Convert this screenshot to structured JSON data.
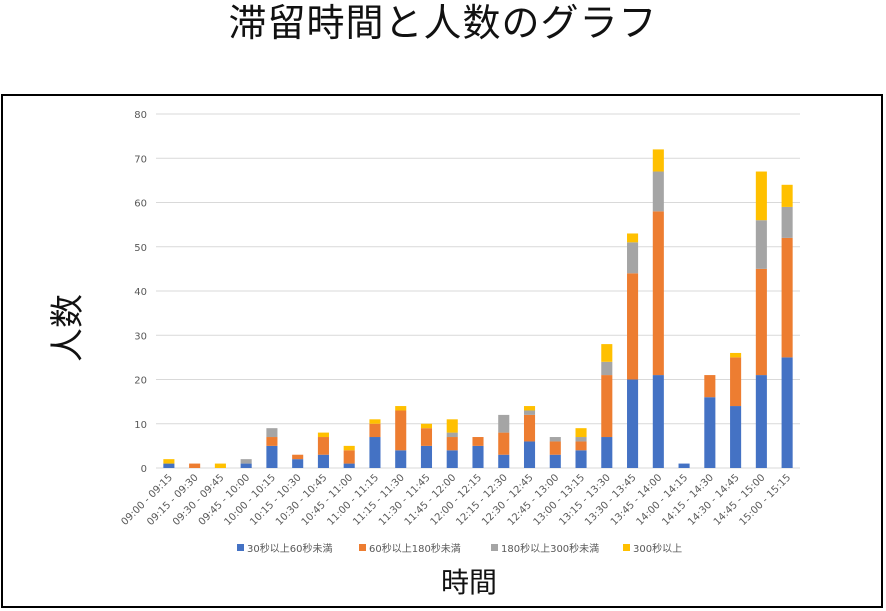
{
  "page": {
    "title": "滞留時間と人数のグラフ"
  },
  "colors": {
    "s1": "#4472C4",
    "s2": "#ED7D31",
    "s3": "#A5A5A5",
    "s4": "#FFC000",
    "grid": "#D9D9D9",
    "axis_text": "#595959"
  },
  "chart_data": {
    "type": "bar",
    "stacked": true,
    "title": "滞留時間と人数のグラフ",
    "xlabel": "時間",
    "ylabel": "人数",
    "ylim": [
      0,
      80
    ],
    "yticks": [
      0,
      10,
      20,
      30,
      40,
      50,
      60,
      70,
      80
    ],
    "grid": true,
    "legend_position": "bottom",
    "categories": [
      "09:00 - 09:15",
      "09:15 - 09:30",
      "09:30 - 09:45",
      "09:45 - 10:00",
      "10:00 - 10:15",
      "10:15 - 10:30",
      "10:30 - 10:45",
      "10:45 - 11:00",
      "11:00 - 11:15",
      "11:15 - 11:30",
      "11:30 - 11:45",
      "11:45 - 12:00",
      "12:00 - 12:15",
      "12:15 - 12:30",
      "12:30 - 12:45",
      "12:45 - 13:00",
      "13:00 - 13:15",
      "13:15 - 13:30",
      "13:30 - 13:45",
      "13:45 - 14:00",
      "14:00 - 14:15",
      "14:15 - 14:30",
      "14:30 - 14:45",
      "14:45 - 15:00",
      "15:00 - 15:15"
    ],
    "series": [
      {
        "name": "30秒以上60秒未満",
        "values": [
          1,
          0,
          0,
          1,
          5,
          2,
          3,
          1,
          7,
          4,
          5,
          4,
          5,
          3,
          6,
          3,
          4,
          7,
          20,
          21,
          1,
          16,
          14,
          21,
          25
        ]
      },
      {
        "name": "60秒以上180秒未満",
        "values": [
          0,
          1,
          0,
          0,
          2,
          1,
          4,
          3,
          3,
          9,
          4,
          3,
          2,
          5,
          6,
          3,
          2,
          14,
          24,
          37,
          0,
          5,
          11,
          24,
          27
        ]
      },
      {
        "name": "180秒以上300秒未満",
        "values": [
          0,
          0,
          0,
          1,
          2,
          0,
          0,
          0,
          0,
          0,
          0,
          1,
          0,
          4,
          1,
          1,
          1,
          3,
          7,
          9,
          0,
          0,
          0,
          11,
          7
        ]
      },
      {
        "name": "300秒以上",
        "values": [
          1,
          0,
          1,
          0,
          0,
          0,
          1,
          1,
          1,
          1,
          1,
          3,
          0,
          0,
          1,
          0,
          2,
          4,
          2,
          5,
          0,
          0,
          1,
          11,
          5
        ]
      }
    ]
  }
}
